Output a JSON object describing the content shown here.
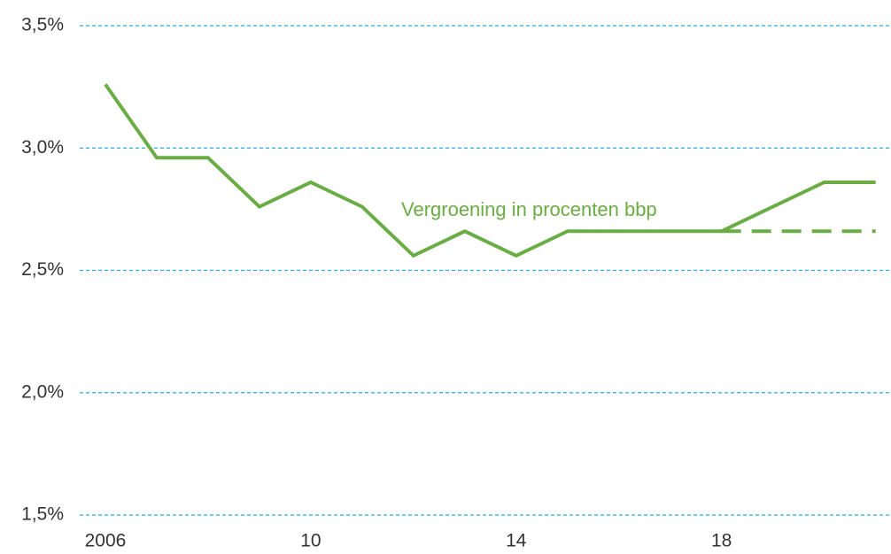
{
  "chart_data": {
    "type": "line",
    "annotation": "Vergroening in procenten bbp",
    "series": [
      {
        "color": "#6aad45",
        "dashed": false,
        "x": [
          2006,
          2007,
          2008,
          2009,
          2010,
          2011,
          2012,
          2013,
          2014,
          2015,
          2016,
          2017,
          2018,
          2019,
          2020,
          2021
        ],
        "values": [
          3.26,
          2.96,
          2.96,
          2.76,
          2.86,
          2.76,
          2.56,
          2.66,
          2.56,
          2.66,
          2.66,
          2.66,
          2.66,
          2.76,
          2.86,
          2.86
        ]
      },
      {
        "color": "#6aad45",
        "dashed": true,
        "x": [
          2018,
          2019,
          2020,
          2021
        ],
        "values": [
          2.66,
          2.66,
          2.66,
          2.66
        ]
      }
    ],
    "xlim": [
      2005.5,
      2021.3
    ],
    "xticks": [
      2006,
      {
        "value": 2010,
        "label": "10"
      },
      {
        "value": 2014,
        "label": "14"
      },
      {
        "value": 2018,
        "label": "18"
      }
    ],
    "ylim": [
      1.5,
      3.5
    ],
    "yticks": [
      {
        "value": 1.5,
        "label": "1,5%"
      },
      {
        "value": 2.0,
        "label": "2,0%"
      },
      {
        "value": 2.5,
        "label": "2,5%"
      },
      {
        "value": 3.0,
        "label": "3,0%"
      },
      {
        "value": 3.5,
        "label": "3,5%"
      }
    ],
    "grid": true,
    "grid_color": "#29abe2"
  }
}
